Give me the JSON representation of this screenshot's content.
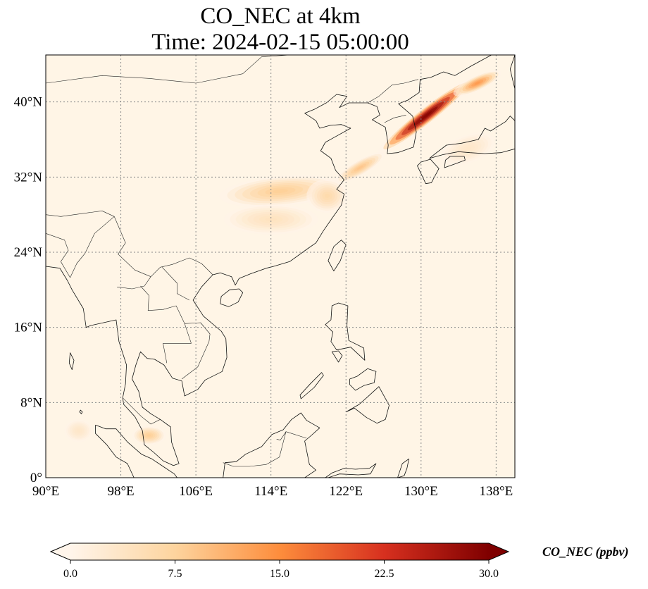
{
  "title": "CO_NEC at 4km",
  "subtitle": "Time: 2024-02-15 05:00:00",
  "colors": {
    "background": "#fff5e6",
    "coast": "#111111",
    "border": "#222222",
    "grid": "#888888",
    "ramp": [
      "#fff5eb",
      "#fdd49e",
      "#fd8d3c",
      "#d7301f",
      "#7f0000"
    ]
  },
  "map": {
    "projection": "PlateCarree",
    "lon_range": [
      90,
      140
    ],
    "lat_range": [
      0,
      45
    ],
    "lon_ticks": [
      {
        "value": 90,
        "label": "90°E"
      },
      {
        "value": 98,
        "label": "98°E"
      },
      {
        "value": 106,
        "label": "106°E"
      },
      {
        "value": 114,
        "label": "114°E"
      },
      {
        "value": 122,
        "label": "122°E"
      },
      {
        "value": 130,
        "label": "130°E"
      },
      {
        "value": 138,
        "label": "138°E"
      }
    ],
    "lat_ticks": [
      {
        "value": 0,
        "label": "0°"
      },
      {
        "value": 8,
        "label": "8°N"
      },
      {
        "value": 16,
        "label": "16°N"
      },
      {
        "value": 24,
        "label": "24°N"
      },
      {
        "value": 32,
        "label": "32°N"
      },
      {
        "value": 40,
        "label": "40°N"
      }
    ],
    "gridlines": true,
    "coastlines": true,
    "borders": true
  },
  "field": {
    "variable": "CO_NEC",
    "units": "ppbv",
    "plumes": [
      {
        "name": "korea-japan-band",
        "lon": 130.5,
        "lat": 38.5,
        "lon_spread": 6.5,
        "lat_spread": 0.9,
        "angle_deg": 38,
        "peak": 32
      },
      {
        "name": "japan-sea-core",
        "lon": 136.0,
        "lat": 42.0,
        "lon_spread": 2.8,
        "lat_spread": 0.8,
        "angle_deg": 25,
        "peak": 14
      },
      {
        "name": "yellow-sea-band",
        "lon": 123.5,
        "lat": 33.0,
        "lon_spread": 3.0,
        "lat_spread": 0.8,
        "angle_deg": 30,
        "peak": 9
      },
      {
        "name": "east-china-band",
        "lon": 115.0,
        "lat": 30.5,
        "lon_spread": 6.5,
        "lat_spread": 1.6,
        "angle_deg": 5,
        "peak": 8
      },
      {
        "name": "yangtze-delta",
        "lon": 120.0,
        "lat": 30.0,
        "lon_spread": 2.2,
        "lat_spread": 1.8,
        "angle_deg": 0,
        "peak": 6
      },
      {
        "name": "south-china-haze",
        "lon": 114.0,
        "lat": 27.5,
        "lon_spread": 5.0,
        "lat_spread": 1.6,
        "angle_deg": 0,
        "peak": 4
      },
      {
        "name": "malay-peninsula",
        "lon": 101.0,
        "lat": 4.5,
        "lon_spread": 1.8,
        "lat_spread": 1.0,
        "angle_deg": 0,
        "peak": 8
      },
      {
        "name": "sumatra-haze",
        "lon": 93.5,
        "lat": 5.0,
        "lon_spread": 1.5,
        "lat_spread": 1.2,
        "angle_deg": 0,
        "peak": 3
      },
      {
        "name": "japan-pacific",
        "lon": 135.0,
        "lat": 35.0,
        "lon_spread": 3.0,
        "lat_spread": 1.5,
        "angle_deg": 20,
        "peak": 3
      }
    ]
  },
  "colorbar": {
    "label": "CO_NEC (ppbv)",
    "vmin": 0,
    "vmax": 30,
    "extend": "both",
    "ticks": [
      {
        "value": 0,
        "label": "0.0"
      },
      {
        "value": 7.5,
        "label": "7.5"
      },
      {
        "value": 15,
        "label": "15.0"
      },
      {
        "value": 22.5,
        "label": "22.5"
      },
      {
        "value": 30,
        "label": "30.0"
      }
    ]
  }
}
